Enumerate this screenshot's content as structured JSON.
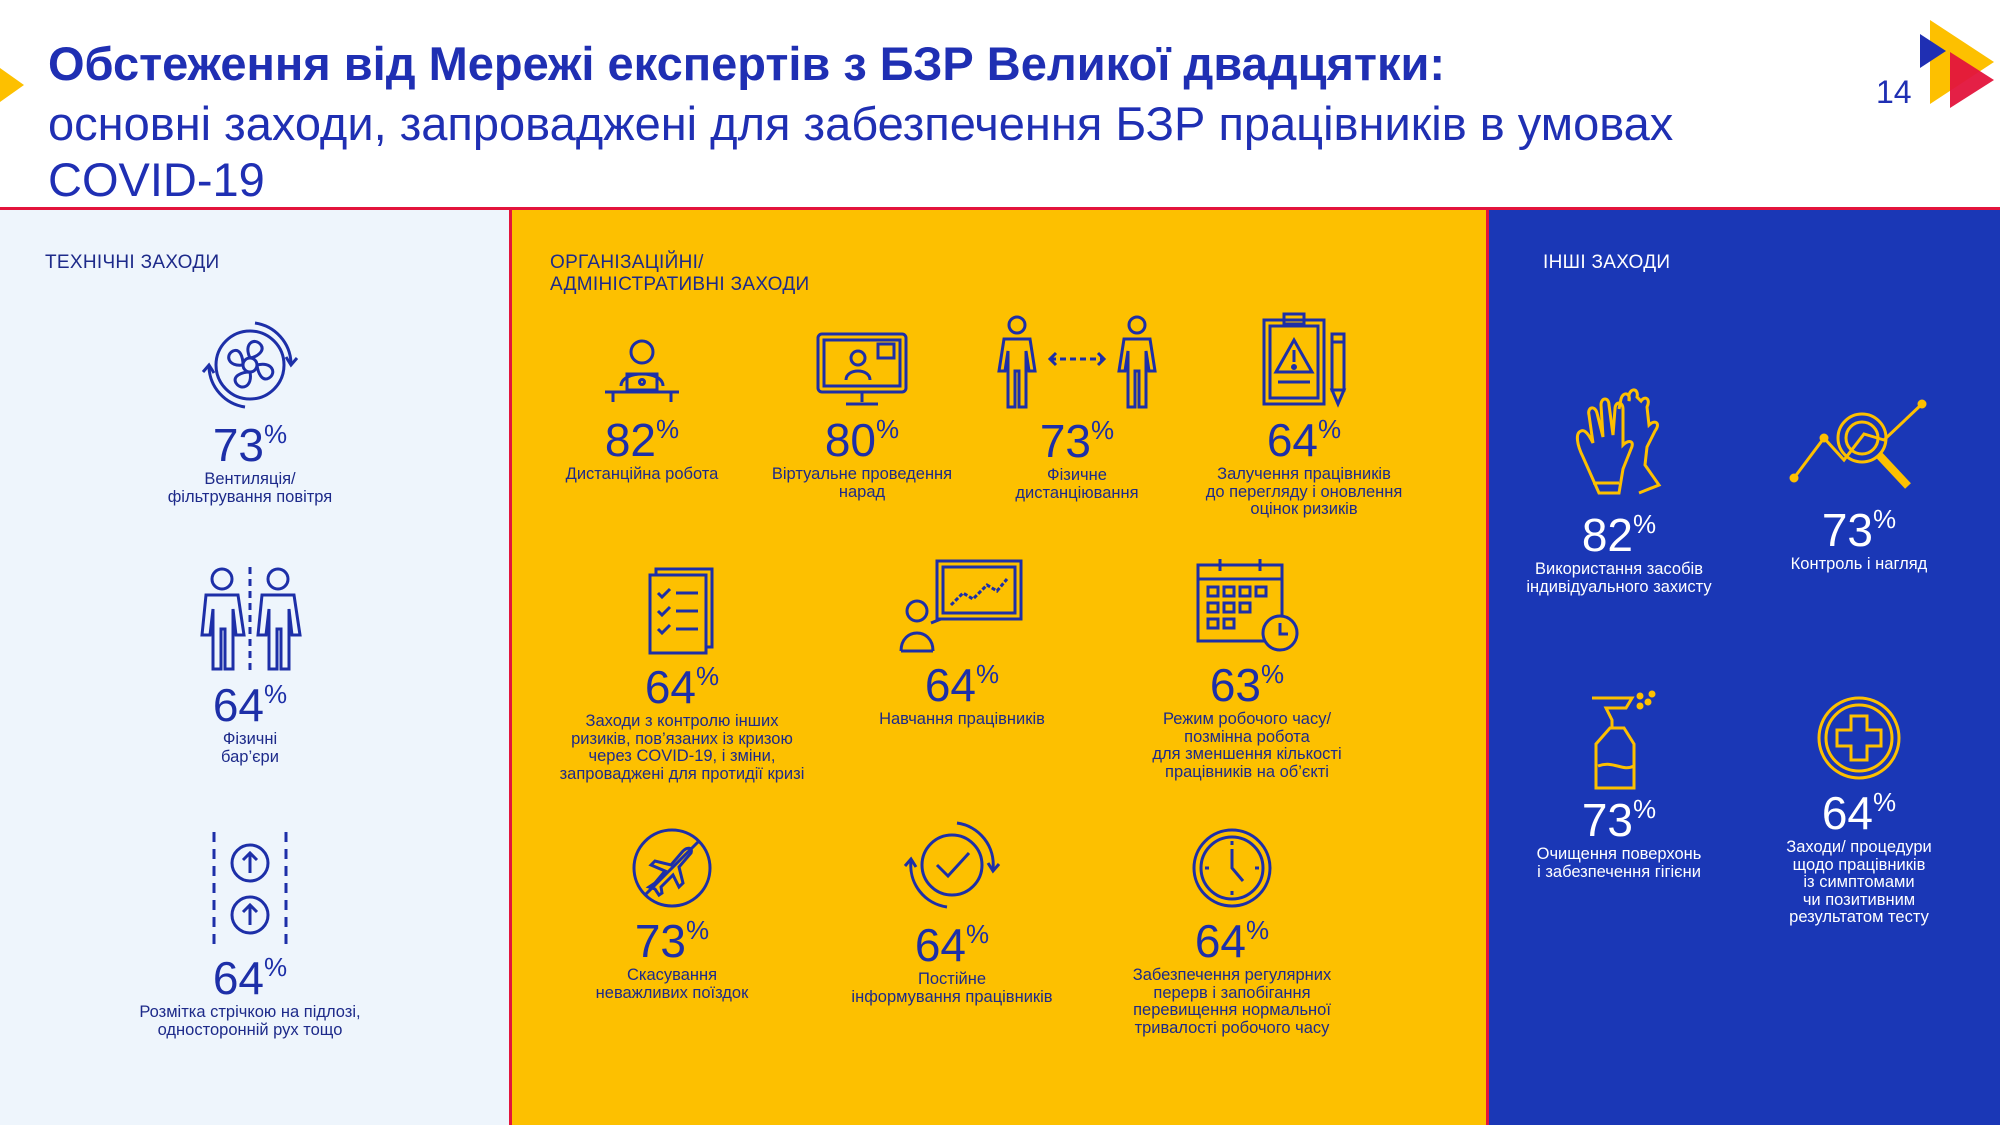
{
  "header": {
    "title_bold": "Обстеження від Мережі експертів з БЗР Великої двадцятки:",
    "title_line2": "основні заходи, запроваджені для забезпечення БЗР працівників в умовах",
    "title_line3": "COVID-19",
    "page_number": "14"
  },
  "colors": {
    "accent_blue": "#1f2fb3",
    "accent_red": "#e3143c",
    "panel_yellow": "#fdc000",
    "panel_dark_blue": "#1a37b6",
    "panel_light": "#eef5fc"
  },
  "technical": {
    "title": "ТЕХНІЧНІ ЗАХОДИ",
    "items": [
      {
        "icon": "ventilation-fan-icon",
        "pct": "73",
        "unit": "%",
        "label": "Вентиляція/\nфільтрування повітря"
      },
      {
        "icon": "physical-barrier-icon",
        "pct": "64",
        "unit": "%",
        "label": "Фізичні\nбар’єри"
      },
      {
        "icon": "floor-marking-icon",
        "pct": "64",
        "unit": "%",
        "label": "Розмітка стрічкою на підлозі,\nодносторонній рух тощо"
      }
    ]
  },
  "organizational": {
    "title_line1": "ОРГАНІЗАЦІЙНІ/",
    "title_line2": "АДМІНІСТРАТИВНІ ЗАХОДИ",
    "items": [
      {
        "icon": "remote-work-icon",
        "pct": "82",
        "unit": "%",
        "label": "Дистанційна робота"
      },
      {
        "icon": "virtual-meeting-icon",
        "pct": "80",
        "unit": "%",
        "label": "Віртуальне проведення\nнарад"
      },
      {
        "icon": "physical-distancing-icon",
        "pct": "73",
        "unit": "%",
        "label": "Фізичне\nдистанціювання"
      },
      {
        "icon": "risk-assessment-icon",
        "pct": "64",
        "unit": "%",
        "label": "Залучення працівників\nдо перегляду і оновлення\nоцінок ризиків"
      },
      {
        "icon": "checklist-icon",
        "pct": "64",
        "unit": "%",
        "label": "Заходи з контролю інших\nризиків, пов’язаних із кризою\nчерез COVID-19, і зміни,\nзапроваджені для протидії кризі"
      },
      {
        "icon": "training-icon",
        "pct": "64",
        "unit": "%",
        "label": "Навчання працівників"
      },
      {
        "icon": "calendar-clock-icon",
        "pct": "63",
        "unit": "%",
        "label": "Режим робочого часу/\nпозмінна робота\nдля зменшення кількості\nпрацівників на об’єкті"
      },
      {
        "icon": "no-travel-icon",
        "pct": "73",
        "unit": "%",
        "label": "Скасування\nневажливих поїздок"
      },
      {
        "icon": "check-refresh-icon",
        "pct": "64",
        "unit": "%",
        "label": "Постійне\nінформування працівників"
      },
      {
        "icon": "clock-icon",
        "pct": "64",
        "unit": "%",
        "label": "Забезпечення регулярних\nперерв і запобігання\nперевищення нормальної\nтривалості робочого часу"
      }
    ]
  },
  "other": {
    "title": "ІНШІ ЗАХОДИ",
    "items": [
      {
        "icon": "gloves-icon",
        "pct": "82",
        "unit": "%",
        "label": "Використання засобів\nіндивідуального захисту"
      },
      {
        "icon": "monitoring-chart-icon",
        "pct": "73",
        "unit": "%",
        "label": "Контроль і нагляд"
      },
      {
        "icon": "spray-bottle-icon",
        "pct": "73",
        "unit": "%",
        "label": "Очищення поверхонь\nі забезпечення гігієни"
      },
      {
        "icon": "medical-cross-icon",
        "pct": "64",
        "unit": "%",
        "label": "Заходи/ процедури\nщодо працівників\nіз симптомами\nчи позитивним\nрезультатом тесту"
      }
    ]
  }
}
